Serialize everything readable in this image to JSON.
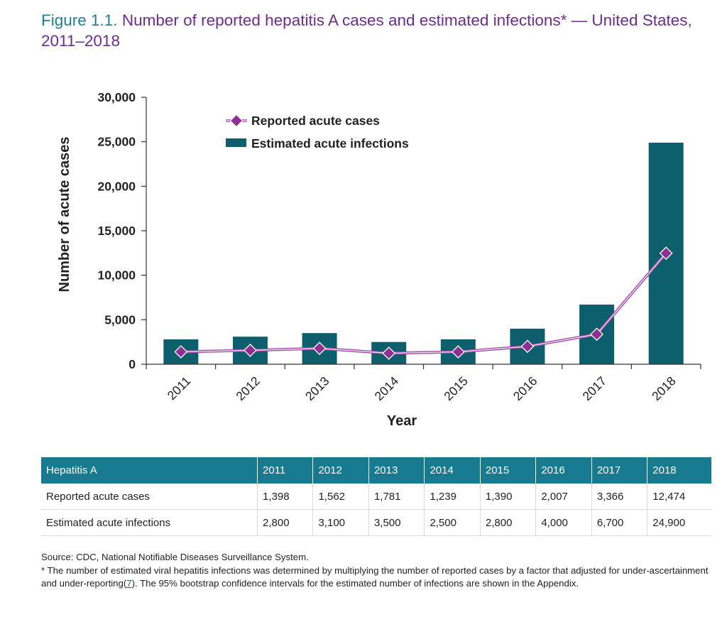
{
  "title": {
    "figure_label": "Figure 1.1.",
    "text": " Number of reported hepatitis A cases and estimated infections* — United States, 2011–2018"
  },
  "colors": {
    "title_label": "#1b7f97",
    "title_text": "#6d2c91",
    "bar": "#0e5f6e",
    "line": "#a04ba8",
    "marker": "#8e2f96",
    "table_header": "#177a8f"
  },
  "chart_data": {
    "type": "bar",
    "categories": [
      "2011",
      "2012",
      "2013",
      "2014",
      "2015",
      "2016",
      "2017",
      "2018"
    ],
    "series": [
      {
        "name": "Estimated acute infections",
        "type": "bar",
        "values": [
          2800,
          3100,
          3500,
          2500,
          2800,
          4000,
          6700,
          24900
        ]
      },
      {
        "name": "Reported acute cases",
        "type": "line",
        "values": [
          1398,
          1562,
          1781,
          1239,
          1390,
          2007,
          3366,
          12474
        ]
      }
    ],
    "ylim": [
      0,
      30000
    ],
    "yticks": [
      "0",
      "5,000",
      "10,000",
      "15,000",
      "20,000",
      "25,000",
      "30,000"
    ],
    "xlabel": "Year",
    "ylabel": "Number of acute cases",
    "legend_placement": "top-left"
  },
  "table": {
    "headers": [
      "Hepatitis A",
      "2011",
      "2012",
      "2013",
      "2014",
      "2015",
      "2016",
      "2017",
      "2018"
    ],
    "rows": [
      [
        "Reported acute cases",
        "1,398",
        "1,562",
        "1,781",
        "1,239",
        "1,390",
        "2,007",
        "3,366",
        "12,474"
      ],
      [
        "Estimated acute infections",
        "2,800",
        "3,100",
        "3,500",
        "2,500",
        "2,800",
        "4,000",
        "6,700",
        "24,900"
      ]
    ]
  },
  "footnotes": {
    "source": "Source: CDC, National Notifiable Diseases Surveillance System.",
    "note_before": "* The number of estimated viral hepatitis infections was determined by multiplying the number of reported cases by a factor that adjusted for under-ascertainment and under-reporting(",
    "note_ref": "7",
    "note_after": "). The 95% bootstrap confidence intervals for the estimated number of infections are shown in the Appendix."
  }
}
